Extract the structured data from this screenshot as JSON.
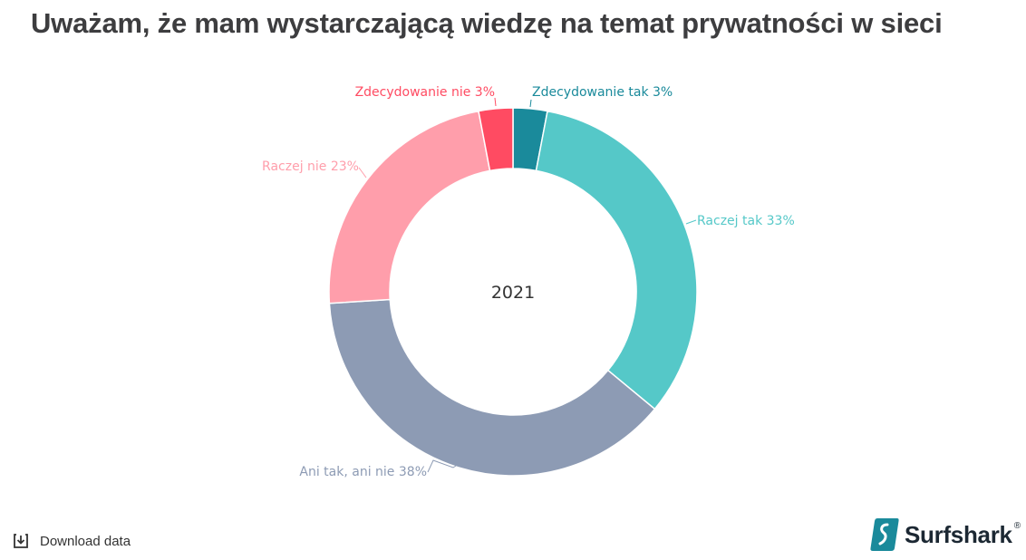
{
  "title": "Uważam, że mam wystarczającą wiedzę na temat prywatności w sieci",
  "center_label": "2021",
  "footer": {
    "download_label": "Download data",
    "download_icon": "download-icon",
    "brand_name": "Surfshark",
    "brand_mark": "®"
  },
  "chart_data": {
    "type": "pie",
    "subtype": "donut",
    "title": "Uważam, że mam wystarczającą wiedzę na temat prywatności w sieci",
    "center_text": "2021",
    "start_angle_deg": 0,
    "direction": "clockwise",
    "categories": [
      "Zdecydowanie tak",
      "Raczej tak",
      "Ani tak, ani nie",
      "Raczej nie",
      "Zdecydowanie nie"
    ],
    "values": [
      3,
      33,
      38,
      23,
      3
    ],
    "unit": "%",
    "colors": [
      "#1a8a9b",
      "#55c8c8",
      "#8d9bb4",
      "#ff9eab",
      "#ff4b62"
    ],
    "labels": [
      "Zdecydowanie tak 3%",
      "Raczej tak 33%",
      "Ani tak, ani nie 38%",
      "Raczej nie 23%",
      "Zdecydowanie nie 3%"
    ],
    "label_colors": [
      "#1a8a9b",
      "#55c8c8",
      "#8d9bb4",
      "#ff9eab",
      "#ff4b62"
    ],
    "legend": "none (inline labels)"
  }
}
